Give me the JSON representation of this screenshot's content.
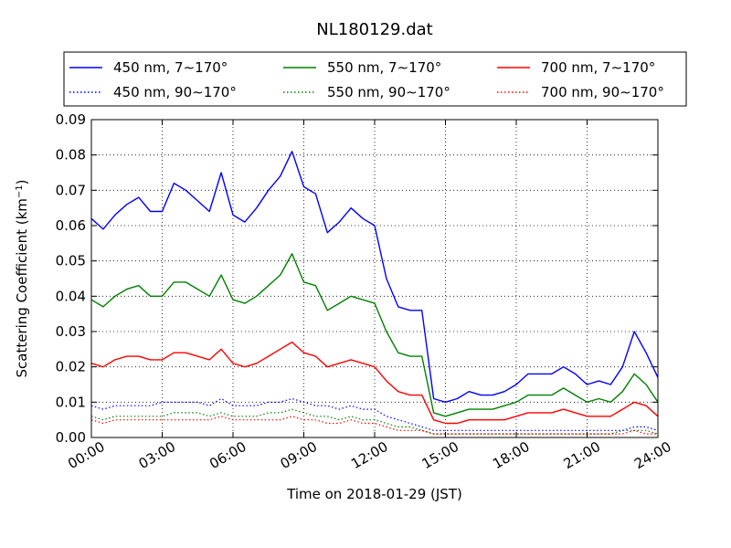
{
  "chart_data": {
    "type": "line",
    "title": "NL180129.dat",
    "xlabel": "Time on 2018-01-29 (JST)",
    "ylabel_main": "Scattering Coefficient (km",
    "ylabel_exp": "−1",
    "ylabel_close": ")",
    "xlim": [
      0,
      24
    ],
    "ylim": [
      0,
      0.09
    ],
    "x_ticks": [
      0,
      3,
      6,
      9,
      12,
      15,
      18,
      21,
      24
    ],
    "x_tick_labels": [
      "00:00",
      "03:00",
      "06:00",
      "09:00",
      "12:00",
      "15:00",
      "18:00",
      "21:00",
      "24:00"
    ],
    "y_ticks": [
      0,
      0.01,
      0.02,
      0.03,
      0.04,
      0.05,
      0.06,
      0.07,
      0.08,
      0.09
    ],
    "y_tick_labels": [
      "0.00",
      "0.01",
      "0.02",
      "0.03",
      "0.04",
      "0.05",
      "0.06",
      "0.07",
      "0.08",
      "0.09"
    ],
    "grid": true,
    "legend_position": "top",
    "x": [
      0,
      0.5,
      1,
      1.5,
      2,
      2.5,
      3,
      3.5,
      4,
      4.5,
      5,
      5.5,
      6,
      6.5,
      7,
      7.5,
      8,
      8.5,
      9,
      9.5,
      10,
      10.5,
      11,
      11.5,
      12,
      12.5,
      13,
      13.5,
      14,
      14.5,
      15,
      15.5,
      16,
      16.5,
      17,
      17.5,
      18,
      18.5,
      19,
      19.5,
      20,
      20.5,
      21,
      21.5,
      22,
      22.5,
      23,
      23.5,
      24
    ],
    "series": [
      {
        "name": "450 nm, 7∼170°",
        "color": "#0000ff",
        "style": "solid",
        "values": [
          0.062,
          0.059,
          0.063,
          0.066,
          0.068,
          0.064,
          0.064,
          0.072,
          0.07,
          0.067,
          0.064,
          0.075,
          0.063,
          0.061,
          0.065,
          0.07,
          0.074,
          0.081,
          0.071,
          0.069,
          0.058,
          0.061,
          0.065,
          0.062,
          0.06,
          0.045,
          0.037,
          0.036,
          0.036,
          0.011,
          0.01,
          0.011,
          0.013,
          0.012,
          0.012,
          0.013,
          0.015,
          0.018,
          0.018,
          0.018,
          0.02,
          0.018,
          0.015,
          0.016,
          0.015,
          0.02,
          0.03,
          0.024,
          0.017
        ]
      },
      {
        "name": "450 nm, 90∼170°",
        "color": "#0000ff",
        "style": "dotted",
        "values": [
          0.009,
          0.008,
          0.009,
          0.009,
          0.009,
          0.009,
          0.01,
          0.01,
          0.01,
          0.01,
          0.009,
          0.011,
          0.009,
          0.009,
          0.009,
          0.01,
          0.01,
          0.011,
          0.01,
          0.009,
          0.009,
          0.008,
          0.009,
          0.008,
          0.008,
          0.006,
          0.005,
          0.004,
          0.003,
          0.002,
          0.002,
          0.002,
          0.002,
          0.002,
          0.002,
          0.002,
          0.002,
          0.002,
          0.002,
          0.002,
          0.002,
          0.002,
          0.002,
          0.002,
          0.002,
          0.002,
          0.003,
          0.003,
          0.002
        ]
      },
      {
        "name": "550 nm, 7∼170°",
        "color": "#008000",
        "style": "solid",
        "values": [
          0.039,
          0.037,
          0.04,
          0.042,
          0.043,
          0.04,
          0.04,
          0.044,
          0.044,
          0.042,
          0.04,
          0.046,
          0.039,
          0.038,
          0.04,
          0.043,
          0.046,
          0.052,
          0.044,
          0.043,
          0.036,
          0.038,
          0.04,
          0.039,
          0.038,
          0.03,
          0.024,
          0.023,
          0.023,
          0.007,
          0.006,
          0.007,
          0.008,
          0.008,
          0.008,
          0.009,
          0.01,
          0.012,
          0.012,
          0.012,
          0.014,
          0.012,
          0.01,
          0.011,
          0.01,
          0.013,
          0.018,
          0.015,
          0.01
        ]
      },
      {
        "name": "550 nm, 90∼170°",
        "color": "#008000",
        "style": "dotted",
        "values": [
          0.006,
          0.005,
          0.006,
          0.006,
          0.006,
          0.006,
          0.006,
          0.007,
          0.007,
          0.007,
          0.006,
          0.007,
          0.006,
          0.006,
          0.006,
          0.007,
          0.007,
          0.008,
          0.007,
          0.006,
          0.006,
          0.005,
          0.006,
          0.005,
          0.005,
          0.004,
          0.003,
          0.003,
          0.002,
          0.001,
          0.001,
          0.001,
          0.001,
          0.001,
          0.001,
          0.001,
          0.001,
          0.001,
          0.001,
          0.001,
          0.001,
          0.001,
          0.001,
          0.001,
          0.001,
          0.002,
          0.002,
          0.002,
          0.001
        ]
      },
      {
        "name": "700 nm, 7∼170°",
        "color": "#ff0000",
        "style": "solid",
        "values": [
          0.021,
          0.02,
          0.022,
          0.023,
          0.023,
          0.022,
          0.022,
          0.024,
          0.024,
          0.023,
          0.022,
          0.025,
          0.021,
          0.02,
          0.021,
          0.023,
          0.025,
          0.027,
          0.024,
          0.023,
          0.02,
          0.021,
          0.022,
          0.021,
          0.02,
          0.016,
          0.013,
          0.012,
          0.012,
          0.005,
          0.004,
          0.004,
          0.005,
          0.005,
          0.005,
          0.005,
          0.006,
          0.007,
          0.007,
          0.007,
          0.008,
          0.007,
          0.006,
          0.006,
          0.006,
          0.008,
          0.01,
          0.009,
          0.006
        ]
      },
      {
        "name": "700 nm, 90∼170°",
        "color": "#ff0000",
        "style": "dotted",
        "values": [
          0.005,
          0.004,
          0.005,
          0.005,
          0.005,
          0.005,
          0.005,
          0.005,
          0.005,
          0.005,
          0.005,
          0.006,
          0.005,
          0.005,
          0.005,
          0.005,
          0.005,
          0.006,
          0.005,
          0.005,
          0.004,
          0.004,
          0.005,
          0.004,
          0.004,
          0.003,
          0.002,
          0.002,
          0.002,
          0.001,
          0.001,
          0.001,
          0.001,
          0.001,
          0.001,
          0.001,
          0.001,
          0.001,
          0.001,
          0.001,
          0.001,
          0.001,
          0.001,
          0.001,
          0.001,
          0.001,
          0.002,
          0.001,
          0.001
        ]
      }
    ]
  }
}
